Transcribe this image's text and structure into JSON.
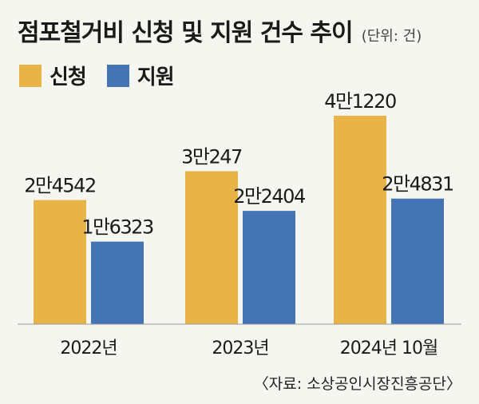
{
  "title": "점포철거비 신청 및 지원 건수 추이",
  "unit": "(단위: 건)",
  "source": "〈자료: 소상공인시장진흥공단〉",
  "chart_data": {
    "type": "bar",
    "title": "점포철거비 신청 및 지원 건수 추이",
    "categories": [
      "2022년",
      "2023년",
      "2024년 10월"
    ],
    "series": [
      {
        "name": "신청",
        "color": "#e8b347",
        "values": [
          24542,
          30247,
          41220
        ],
        "labels": [
          "2만4542",
          "3만247",
          "4만1220"
        ]
      },
      {
        "name": "지원",
        "color": "#4474b3",
        "values": [
          16323,
          22404,
          24831
        ],
        "labels": [
          "1만6323",
          "2만2404",
          "2만4831"
        ]
      }
    ],
    "xlabel": "",
    "ylabel": "",
    "ylim": [
      0,
      45000
    ]
  }
}
